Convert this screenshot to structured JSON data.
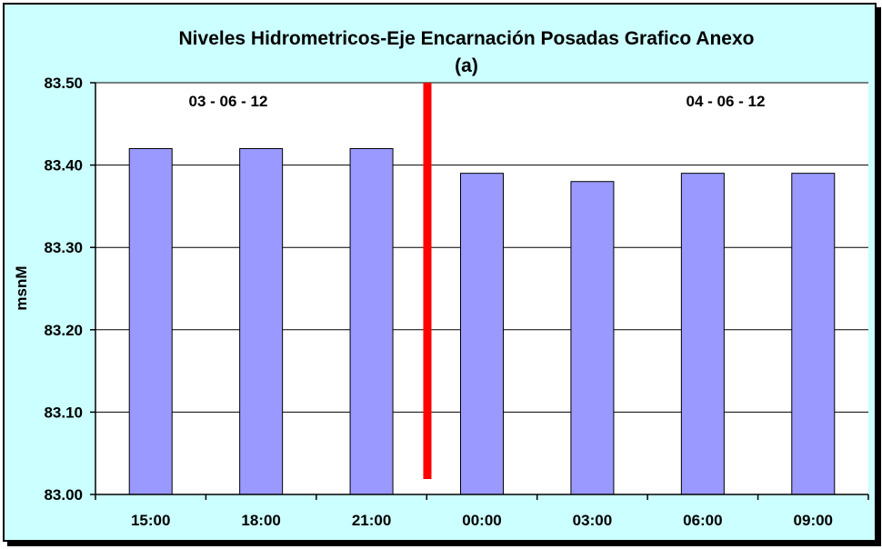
{
  "chart_data": {
    "type": "bar",
    "title": "Niveles Hidrometricos-Eje Encarnación Posadas Grafico Anexo",
    "subtitle": "(a)",
    "xlabel": "",
    "ylabel": "msnM",
    "categories": [
      "15:00",
      "18:00",
      "21:00",
      "00:00",
      "03:00",
      "06:00",
      "09:00"
    ],
    "values": [
      83.42,
      83.42,
      83.42,
      83.39,
      83.38,
      83.39,
      83.39
    ],
    "ylim": [
      83.0,
      83.5
    ],
    "yticks": [
      "83.00",
      "83.10",
      "83.20",
      "83.30",
      "83.40",
      "83.50"
    ],
    "grid": true,
    "date_labels": [
      "03 - 06 - 12",
      "04 - 06 - 12"
    ],
    "colors": {
      "bar": "#9999ff",
      "day_separator": "#ff0000",
      "chart_background": "#ccffff",
      "plot_background": "#ffffff"
    }
  }
}
